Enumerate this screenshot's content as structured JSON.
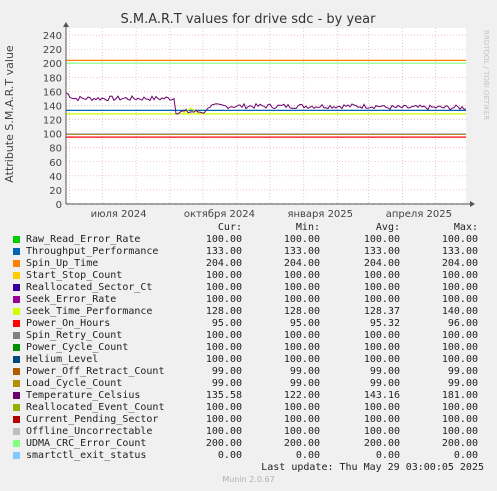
{
  "chart_data": {
    "type": "line",
    "title": "S.M.A.R.T values for drive sdc - by year",
    "ylabel": "Attribute S.M.A.R.T value",
    "watermark": "RRDTOOL / TOBI OETIKER",
    "ylim": [
      0,
      250
    ],
    "yticks": [
      0,
      20,
      40,
      60,
      80,
      100,
      120,
      140,
      160,
      180,
      200,
      220,
      240
    ],
    "xlim": [
      "2024-05-29",
      "2025-05-29"
    ],
    "xticks": [
      {
        "date": "2024-07-16",
        "label": "июля 2024"
      },
      {
        "date": "2024-10-16",
        "label": "октября 2024"
      },
      {
        "date": "2025-01-16",
        "label": "января 2025"
      },
      {
        "date": "2025-04-16",
        "label": "апреля 2025"
      }
    ],
    "grid": true,
    "legend_position": "below",
    "columns": {
      "cur": "Cur:",
      "min": "Min:",
      "avg": "Avg:",
      "max": "Max:"
    },
    "series": [
      {
        "name": "Raw_Read_Error_Rate",
        "color": "#00cc00",
        "cur": "100.00",
        "min": "100.00",
        "avg": "100.00",
        "max": "100.00",
        "value": 100
      },
      {
        "name": "Throughput_Performance",
        "color": "#0066b3",
        "cur": "133.00",
        "min": "133.00",
        "avg": "133.00",
        "max": "133.00",
        "value": 133
      },
      {
        "name": "Spin_Up_Time",
        "color": "#ff8000",
        "cur": "204.00",
        "min": "204.00",
        "avg": "204.00",
        "max": "204.00",
        "value": 204
      },
      {
        "name": "Start_Stop_Count",
        "color": "#ffcc00",
        "cur": "100.00",
        "min": "100.00",
        "avg": "100.00",
        "max": "100.00",
        "value": 100
      },
      {
        "name": "Reallocated_Sector_Ct",
        "color": "#330099",
        "cur": "100.00",
        "min": "100.00",
        "avg": "100.00",
        "max": "100.00",
        "value": 100
      },
      {
        "name": "Seek_Error_Rate",
        "color": "#990099",
        "cur": "100.00",
        "min": "100.00",
        "avg": "100.00",
        "max": "100.00",
        "value": 100
      },
      {
        "name": "Seek_Time_Performance",
        "color": "#ccff00",
        "cur": "128.00",
        "min": "128.00",
        "avg": "128.37",
        "max": "140.00",
        "value": 128
      },
      {
        "name": "Power_On_Hours",
        "color": "#ff0000",
        "cur": "95.00",
        "min": "95.00",
        "avg": "95.32",
        "max": "96.00",
        "value": 95
      },
      {
        "name": "Spin_Retry_Count",
        "color": "#808080",
        "cur": "100.00",
        "min": "100.00",
        "avg": "100.00",
        "max": "100.00",
        "value": 100
      },
      {
        "name": "Power_Cycle_Count",
        "color": "#008f00",
        "cur": "100.00",
        "min": "100.00",
        "avg": "100.00",
        "max": "100.00",
        "value": 100
      },
      {
        "name": "Helium_Level",
        "color": "#00487d",
        "cur": "100.00",
        "min": "100.00",
        "avg": "100.00",
        "max": "100.00",
        "value": 100
      },
      {
        "name": "Power_Off_Retract_Count",
        "color": "#b35a00",
        "cur": "99.00",
        "min": "99.00",
        "avg": "99.00",
        "max": "99.00",
        "value": 99
      },
      {
        "name": "Load_Cycle_Count",
        "color": "#b38f00",
        "cur": "99.00",
        "min": "99.00",
        "avg": "99.00",
        "max": "99.00",
        "value": 99
      },
      {
        "name": "Temperature_Celsius",
        "color": "#6b006b",
        "cur": "135.58",
        "min": "122.00",
        "avg": "143.16",
        "max": "181.00",
        "value": 135.58
      },
      {
        "name": "Reallocated_Event_Count",
        "color": "#8fb300",
        "cur": "100.00",
        "min": "100.00",
        "avg": "100.00",
        "max": "100.00",
        "value": 100
      },
      {
        "name": "Current_Pending_Sector",
        "color": "#b30000",
        "cur": "100.00",
        "min": "100.00",
        "avg": "100.00",
        "max": "100.00",
        "value": 100
      },
      {
        "name": "Offline_Uncorrectable",
        "color": "#bebebe",
        "cur": "100.00",
        "min": "100.00",
        "avg": "100.00",
        "max": "100.00",
        "value": 100
      },
      {
        "name": "UDMA_CRC_Error_Count",
        "color": "#80ff80",
        "cur": "200.00",
        "min": "200.00",
        "avg": "200.00",
        "max": "200.00",
        "value": 200
      },
      {
        "name": "smartctl_exit_status",
        "color": "#80c9ff",
        "cur": "0.00",
        "min": "0.00",
        "avg": "0.00",
        "max": "0.00",
        "value": 0
      }
    ]
  },
  "last_update": "Last update: Thu May 29 03:00:05 2025",
  "footer": "Munin 2.0.67"
}
